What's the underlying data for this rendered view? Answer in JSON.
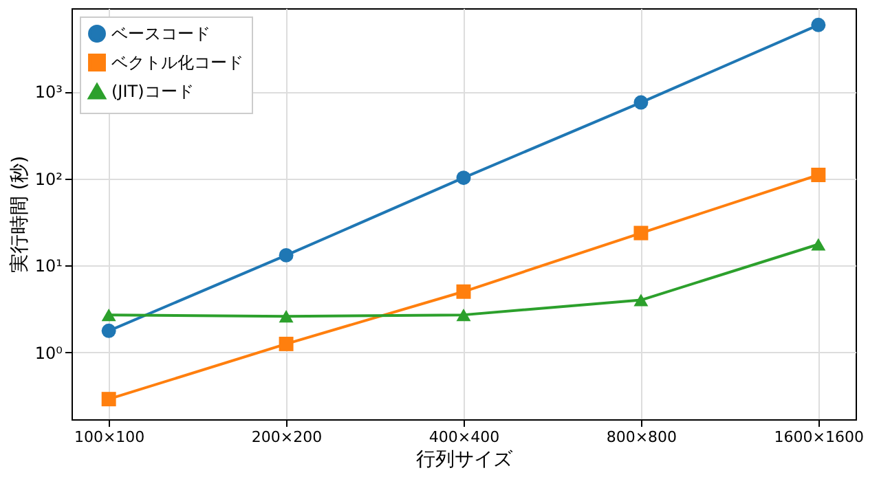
{
  "chart_data": {
    "type": "line",
    "xlabel": "行列サイズ",
    "ylabel": "実行時間 (秒)",
    "categories": [
      "100×100",
      "200×200",
      "400×400",
      "800×800",
      "1600×1600"
    ],
    "ylim": [
      0.17,
      9100
    ],
    "yticks": [
      {
        "value": 1,
        "label": "10⁰"
      },
      {
        "value": 10,
        "label": "10¹"
      },
      {
        "value": 100,
        "label": "10²"
      },
      {
        "value": 1000,
        "label": "10³"
      }
    ],
    "log": "y",
    "grid": true,
    "legend": "top left",
    "series": [
      {
        "name": "ベースコード",
        "color": "#1f77b4",
        "marker": "circle",
        "values": [
          1.77,
          13.1,
          102,
          750,
          5840
        ]
      },
      {
        "name": "ベクトル化コード",
        "color": "#ff7f0e",
        "marker": "square",
        "values": [
          0.29,
          1.25,
          5.0,
          23.6,
          110
        ]
      },
      {
        "name": "(JIT)コード",
        "color": "#2ca02c",
        "marker": "triangle",
        "values": [
          2.7,
          2.6,
          2.7,
          4.0,
          17.5
        ]
      }
    ]
  }
}
